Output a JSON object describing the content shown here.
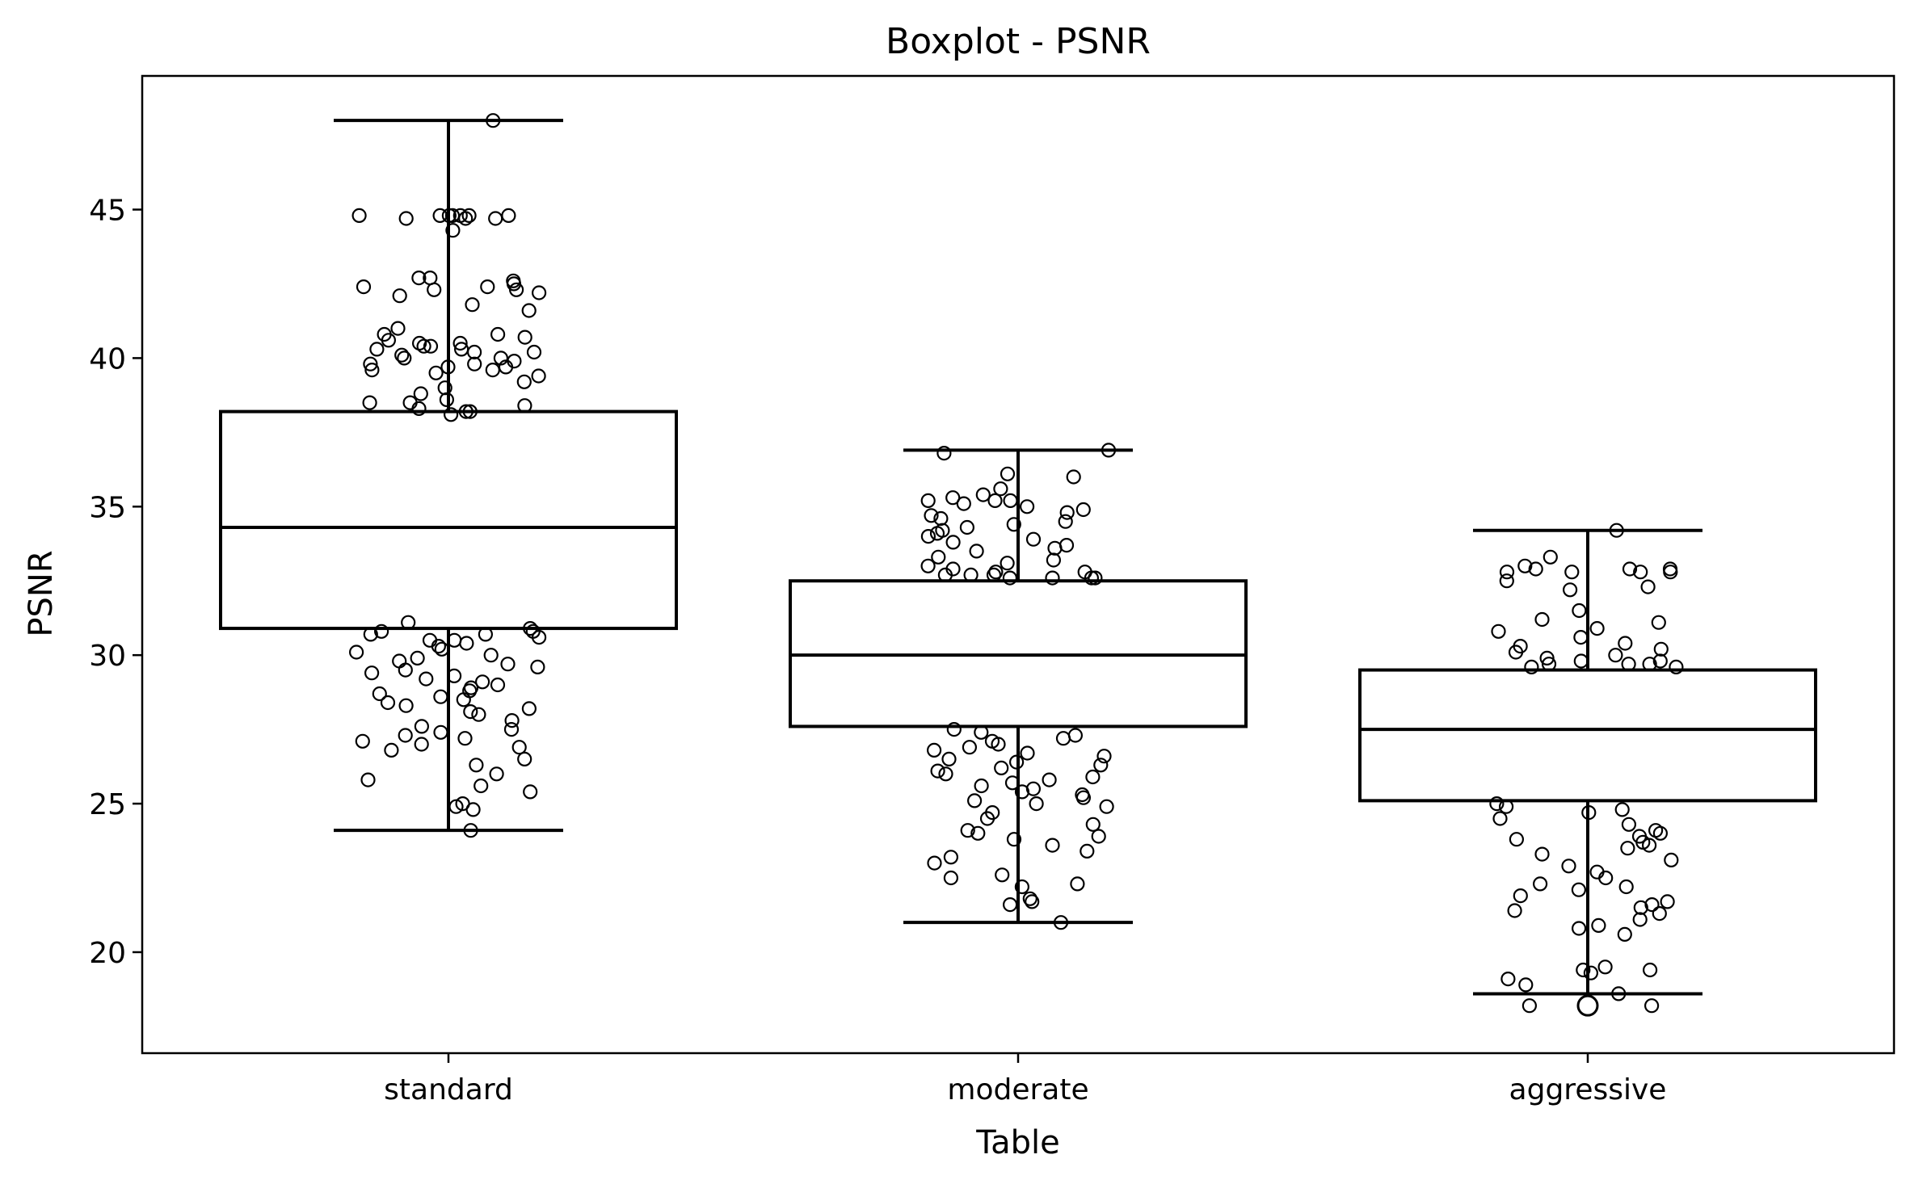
{
  "chart_data": {
    "type": "boxplot",
    "title": "Boxplot - PSNR",
    "xlabel": "Table",
    "ylabel": "PSNR",
    "ylim": [
      16.6,
      49.5
    ],
    "yticks": [
      20,
      25,
      30,
      35,
      40,
      45
    ],
    "categories": [
      "standard",
      "moderate",
      "aggressive"
    ],
    "grid": false,
    "boxes": [
      {
        "name": "standard",
        "whisker_low": 24.1,
        "q1": 30.9,
        "median": 34.3,
        "q3": 38.2,
        "whisker_high": 48.0,
        "outliers": []
      },
      {
        "name": "moderate",
        "whisker_low": 21.0,
        "q1": 27.6,
        "median": 30.0,
        "q3": 32.5,
        "whisker_high": 36.9,
        "outliers": []
      },
      {
        "name": "aggressive",
        "whisker_low": 18.6,
        "q1": 25.1,
        "median": 27.5,
        "q3": 29.5,
        "whisker_high": 34.2,
        "outliers": [
          18.2
        ]
      }
    ],
    "points": {
      "standard": [
        48.0,
        44.8,
        44.8,
        44.7,
        44.8,
        44.7,
        44.8,
        44.3,
        44.8,
        44.8,
        44.7,
        44.8,
        42.7,
        42.6,
        42.7,
        42.3,
        42.1,
        42.2,
        42.4,
        42.3,
        42.5,
        42.4,
        41.8,
        41.6,
        41.0,
        40.8,
        40.8,
        40.7,
        40.6,
        40.5,
        40.5,
        40.4,
        40.4,
        40.3,
        40.3,
        40.2,
        40.2,
        40.1,
        40.0,
        40.0,
        39.9,
        39.8,
        39.8,
        39.7,
        39.7,
        39.6,
        39.6,
        39.5,
        39.4,
        39.2,
        39.0,
        38.8,
        38.6,
        38.5,
        38.4,
        38.5,
        38.3,
        38.2,
        38.2,
        38.1,
        31.1,
        30.9,
        30.8,
        30.8,
        30.7,
        30.7,
        30.6,
        30.5,
        30.5,
        30.4,
        30.3,
        30.2,
        30.1,
        30.0,
        29.9,
        29.8,
        29.7,
        29.6,
        29.5,
        29.4,
        29.3,
        29.2,
        29.1,
        29.0,
        28.9,
        28.8,
        28.7,
        28.6,
        28.5,
        28.4,
        28.3,
        28.2,
        28.1,
        28.0,
        27.8,
        27.6,
        27.5,
        27.4,
        27.3,
        27.2,
        27.1,
        27.0,
        26.9,
        26.8,
        26.5,
        26.3,
        26.0,
        25.8,
        25.6,
        25.4,
        25.0,
        24.9,
        24.8,
        24.1
      ],
      "moderate": [
        36.9,
        36.8,
        36.1,
        36.0,
        35.6,
        35.4,
        35.3,
        35.2,
        35.2,
        35.2,
        35.1,
        35.0,
        34.9,
        34.8,
        34.7,
        34.6,
        34.5,
        34.4,
        34.3,
        34.2,
        34.1,
        34.0,
        33.9,
        33.8,
        33.7,
        33.6,
        33.5,
        33.3,
        33.2,
        33.1,
        33.0,
        32.9,
        32.8,
        32.8,
        32.7,
        32.7,
        32.7,
        32.6,
        32.6,
        32.6,
        32.6,
        27.5,
        27.4,
        27.3,
        27.2,
        27.1,
        27.0,
        26.9,
        26.8,
        26.7,
        26.6,
        26.5,
        26.4,
        26.3,
        26.2,
        26.1,
        26.0,
        25.9,
        25.8,
        25.7,
        25.6,
        25.5,
        25.4,
        25.3,
        25.2,
        25.1,
        25.0,
        24.9,
        24.7,
        24.5,
        24.3,
        24.1,
        24.0,
        23.9,
        23.8,
        23.6,
        23.4,
        23.2,
        23.0,
        22.6,
        22.5,
        22.3,
        22.2,
        21.8,
        21.7,
        21.6,
        21.0
      ],
      "aggressive": [
        34.2,
        33.3,
        33.0,
        32.9,
        32.9,
        32.9,
        32.8,
        32.8,
        32.8,
        32.8,
        32.5,
        32.3,
        32.2,
        31.5,
        31.2,
        31.1,
        30.9,
        30.8,
        30.6,
        30.4,
        30.3,
        30.2,
        30.1,
        30.0,
        29.9,
        29.8,
        29.8,
        29.7,
        29.7,
        29.7,
        29.6,
        29.6,
        25.0,
        24.9,
        24.8,
        24.7,
        24.5,
        24.3,
        24.1,
        24.0,
        23.9,
        23.8,
        23.7,
        23.6,
        23.5,
        23.3,
        23.1,
        22.9,
        22.7,
        22.5,
        22.3,
        22.2,
        22.1,
        21.9,
        21.7,
        21.6,
        21.5,
        21.4,
        21.3,
        21.1,
        20.9,
        20.8,
        20.6,
        19.5,
        19.4,
        19.4,
        19.3,
        19.1,
        18.9,
        18.6,
        18.2,
        18.2
      ]
    }
  }
}
